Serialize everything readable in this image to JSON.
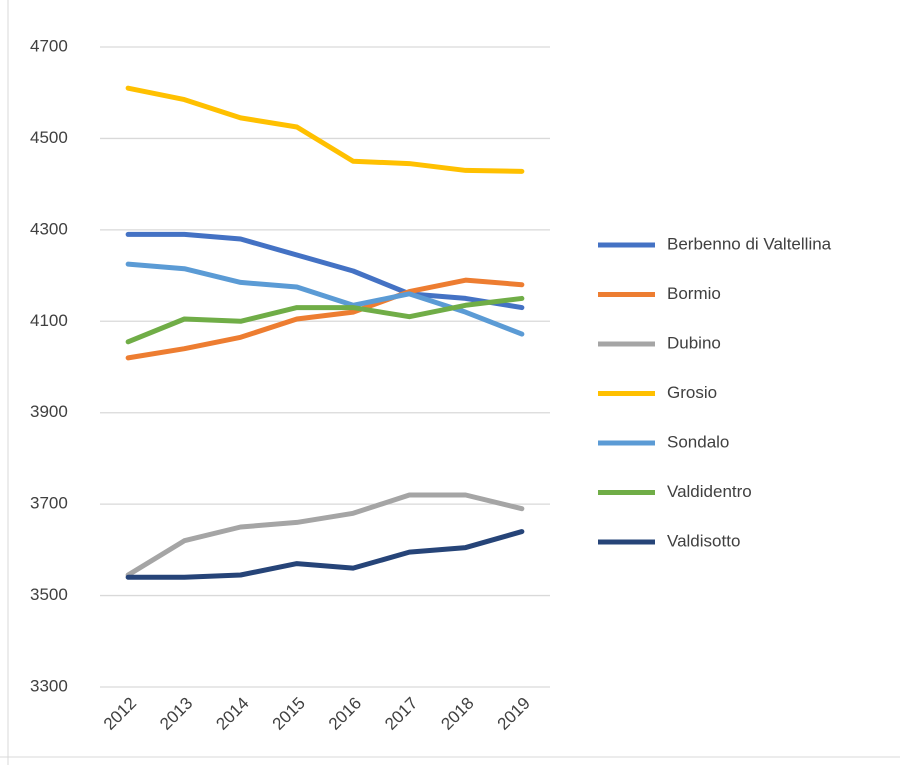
{
  "chart_data": {
    "type": "line",
    "categories": [
      "2012",
      "2013",
      "2014",
      "2015",
      "2016",
      "2017",
      "2018",
      "2019"
    ],
    "series": [
      {
        "name": "Berbenno di Valtellina",
        "color": "#4472c4",
        "values": [
          4290,
          4290,
          4280,
          4245,
          4210,
          4160,
          4150,
          4130
        ]
      },
      {
        "name": "Bormio",
        "color": "#ed7d31",
        "values": [
          4020,
          4040,
          4065,
          4105,
          4120,
          4165,
          4190,
          4180
        ]
      },
      {
        "name": "Dubino",
        "color": "#a5a5a5",
        "values": [
          3545,
          3620,
          3650,
          3660,
          3680,
          3720,
          3720,
          3690
        ]
      },
      {
        "name": "Grosio",
        "color": "#ffc000",
        "values": [
          4610,
          4585,
          4545,
          4525,
          4450,
          4445,
          4430,
          4428
        ]
      },
      {
        "name": "Sondalo",
        "color": "#5b9bd5",
        "values": [
          4225,
          4215,
          4185,
          4175,
          4135,
          4160,
          4120,
          4072
        ]
      },
      {
        "name": "Valdidentro",
        "color": "#70ad47",
        "values": [
          4055,
          4105,
          4100,
          4130,
          4130,
          4110,
          4135,
          4150
        ]
      },
      {
        "name": "Valdisotto",
        "color": "#264478",
        "values": [
          3540,
          3540,
          3545,
          3570,
          3560,
          3595,
          3605,
          3640
        ]
      }
    ],
    "ylim": [
      3300,
      4700
    ],
    "yticks": [
      3300,
      3500,
      3700,
      3900,
      4100,
      4300,
      4500,
      4700
    ],
    "grid": true,
    "legend": "right"
  }
}
